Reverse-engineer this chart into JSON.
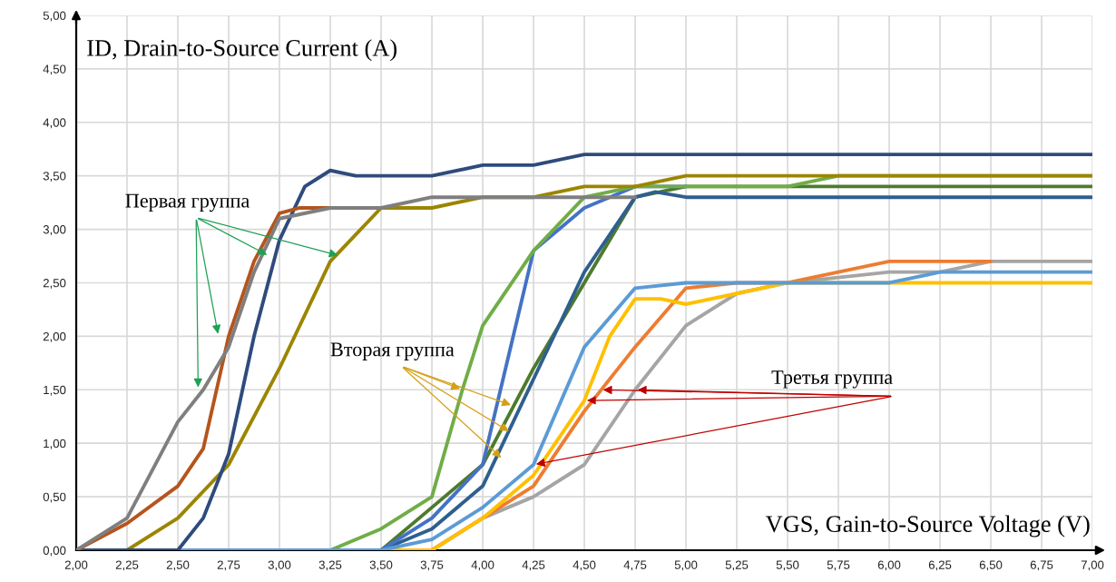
{
  "chart_data": {
    "type": "line",
    "ylabel": "ID, Drain-to-Source Current (A)",
    "xlabel": "VGS, Gain-to-Source Voltage (V)",
    "xlim": [
      2,
      7
    ],
    "ylim": [
      0,
      5
    ],
    "xticks": [
      {
        "value": 2,
        "label": "2,00"
      },
      {
        "value": 2.25,
        "label": "2,25"
      },
      {
        "value": 2.5,
        "label": "2,50"
      },
      {
        "value": 2.75,
        "label": "2,75"
      },
      {
        "value": 3,
        "label": "3,00"
      },
      {
        "value": 3.25,
        "label": "3,25"
      },
      {
        "value": 3.5,
        "label": "3,50"
      },
      {
        "value": 3.75,
        "label": "3,75"
      },
      {
        "value": 4,
        "label": "4,00"
      },
      {
        "value": 4.25,
        "label": "4,25"
      },
      {
        "value": 4.5,
        "label": "4,50"
      },
      {
        "value": 4.75,
        "label": "4,75"
      },
      {
        "value": 5,
        "label": "5,00"
      },
      {
        "value": 5.25,
        "label": "5,25"
      },
      {
        "value": 5.5,
        "label": "5,50"
      },
      {
        "value": 5.75,
        "label": "5,75"
      },
      {
        "value": 6,
        "label": "6,00"
      },
      {
        "value": 6.25,
        "label": "6,25"
      },
      {
        "value": 6.5,
        "label": "6,50"
      },
      {
        "value": 6.75,
        "label": "6,75"
      },
      {
        "value": 7,
        "label": "7,00"
      }
    ],
    "yticks": [
      {
        "value": 0,
        "label": "0,00"
      },
      {
        "value": 0.5,
        "label": "0,50"
      },
      {
        "value": 1,
        "label": "1,00"
      },
      {
        "value": 1.5,
        "label": "1,50"
      },
      {
        "value": 2,
        "label": "2,00"
      },
      {
        "value": 2.5,
        "label": "2,50"
      },
      {
        "value": 3,
        "label": "3,00"
      },
      {
        "value": 3.5,
        "label": "3,50"
      },
      {
        "value": 4,
        "label": "4,00"
      },
      {
        "value": 4.5,
        "label": "4,50"
      },
      {
        "value": 5,
        "label": "5,00"
      }
    ],
    "grid": true,
    "marker": "none",
    "line_style": "solid",
    "annotations": [
      {
        "text": "Первая группа",
        "x": 2.95,
        "y": 2.75
      },
      {
        "text": "Вторая группа",
        "x": 3.9,
        "y": 1.5
      },
      {
        "text": "Третья группа",
        "x": 4.75,
        "y": 1.5
      }
    ],
    "series": [
      {
        "color": "#4e7a2e",
        "x": [
          2,
          3.5,
          3.75,
          4,
          4.25,
          4.5,
          4.75,
          5,
          5.5,
          7
        ],
        "values": [
          0,
          0,
          0.4,
          0.8,
          1.7,
          2.5,
          3.3,
          3.4,
          3.4,
          3.4
        ]
      },
      {
        "color": "#2e5f8f",
        "x": [
          2,
          3.5,
          3.75,
          4,
          4.25,
          4.5,
          4.75,
          4.85,
          5,
          7
        ],
        "values": [
          0,
          0,
          0.2,
          0.6,
          1.6,
          2.6,
          3.3,
          3.35,
          3.3,
          3.3
        ]
      },
      {
        "color": "#4472c4",
        "x": [
          2,
          3.5,
          3.75,
          4,
          4.125,
          4.25,
          4.5,
          4.75,
          5
        ],
        "values": [
          0,
          0,
          0.3,
          0.8,
          1.8,
          2.8,
          3.2,
          3.4,
          3.4
        ]
      },
      {
        "color": "#70ad47",
        "x": [
          2,
          3.25,
          3.5,
          3.75,
          3.9,
          4,
          4.25,
          4.5,
          4.75,
          5,
          5.5,
          5.75,
          7
        ],
        "values": [
          0,
          0,
          0.2,
          0.5,
          1.5,
          2.1,
          2.8,
          3.3,
          3.4,
          3.4,
          3.4,
          3.5,
          3.5
        ]
      },
      {
        "color": "#a5a5a5",
        "x": [
          2,
          3.75,
          4,
          4.25,
          4.5,
          4.75,
          5,
          5.25,
          5.5,
          5.75,
          6,
          6.25,
          6.5,
          7
        ],
        "values": [
          0,
          0,
          0.3,
          0.5,
          0.8,
          1.5,
          2.1,
          2.4,
          2.5,
          2.55,
          2.6,
          2.6,
          2.7,
          2.7
        ]
      },
      {
        "color": "#ed7d31",
        "x": [
          2,
          3.75,
          4,
          4.25,
          4.5,
          4.75,
          5,
          5.25,
          5.5,
          5.75,
          6,
          6.5
        ],
        "values": [
          0,
          0,
          0.3,
          0.6,
          1.3,
          1.9,
          2.45,
          2.5,
          2.5,
          2.6,
          2.7,
          2.7
        ]
      },
      {
        "color": "#ffc000",
        "x": [
          2,
          3.75,
          4,
          4.25,
          4.5,
          4.625,
          4.75,
          4.875,
          5,
          5.25,
          5.5,
          7
        ],
        "values": [
          0,
          0,
          0.3,
          0.7,
          1.4,
          2,
          2.35,
          2.35,
          2.3,
          2.4,
          2.5,
          2.5
        ]
      },
      {
        "color": "#5b9bd5",
        "x": [
          2,
          3.5,
          3.75,
          4,
          4.25,
          4.5,
          4.75,
          5,
          5.5,
          6,
          6.25,
          7
        ],
        "values": [
          0,
          0,
          0.1,
          0.4,
          0.8,
          1.9,
          2.45,
          2.5,
          2.5,
          2.5,
          2.6,
          2.6
        ]
      },
      {
        "color": "#9c8500",
        "x": [
          2,
          2.25,
          2.5,
          2.75,
          3,
          3.25,
          3.5,
          3.75,
          4,
          4.25,
          4.5,
          4.75,
          5,
          7
        ],
        "values": [
          0,
          0,
          0.3,
          0.8,
          1.7,
          2.7,
          3.2,
          3.2,
          3.3,
          3.3,
          3.4,
          3.4,
          3.5,
          3.5
        ]
      },
      {
        "color": "#2f4b7c",
        "x": [
          2,
          2.5,
          2.625,
          2.75,
          2.875,
          3,
          3.125,
          3.25,
          3.375,
          3.5,
          3.75,
          4,
          4.25,
          4.5,
          5,
          7
        ],
        "values": [
          0,
          0,
          0.3,
          0.9,
          2,
          2.9,
          3.4,
          3.55,
          3.5,
          3.5,
          3.5,
          3.6,
          3.6,
          3.7,
          3.7,
          3.7
        ]
      },
      {
        "color": "#b5541c",
        "x": [
          2,
          2.25,
          2.5,
          2.625,
          2.75,
          2.875,
          3,
          3.1,
          3.25,
          3.5
        ],
        "values": [
          0,
          0.25,
          0.6,
          0.95,
          2,
          2.7,
          3.15,
          3.2,
          3.2,
          3.2
        ]
      },
      {
        "color": "#7f7f7f",
        "x": [
          2,
          2.25,
          2.5,
          2.625,
          2.75,
          2.875,
          3,
          3.25,
          3.5,
          3.75,
          4,
          4.5,
          4.75
        ],
        "values": [
          0,
          0.3,
          1.2,
          1.5,
          1.9,
          2.6,
          3.1,
          3.2,
          3.2,
          3.3,
          3.3,
          3.3,
          3.3
        ]
      }
    ]
  }
}
